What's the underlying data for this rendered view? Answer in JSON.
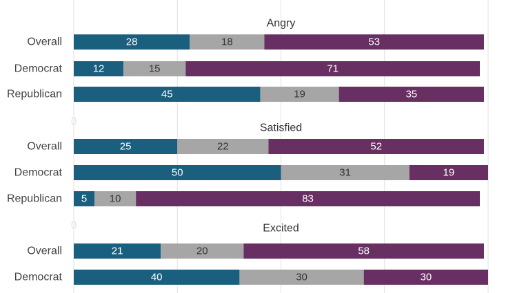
{
  "chart_data": {
    "type": "bar",
    "orientation": "horizontal",
    "stacked": true,
    "xlim": [
      0,
      100
    ],
    "grid": true,
    "colors": [
      "#1b5f7f",
      "#a6a6a6",
      "#682f63"
    ],
    "groups": [
      {
        "title": "Angry",
        "rows": [
          {
            "category": "Overall",
            "values": [
              28,
              18,
              53
            ]
          },
          {
            "category": "Democrat",
            "values": [
              12,
              15,
              71
            ]
          },
          {
            "category": "Republican",
            "values": [
              45,
              19,
              35
            ]
          }
        ]
      },
      {
        "title": "Satisfied",
        "rows": [
          {
            "category": "Overall",
            "values": [
              25,
              22,
              52
            ]
          },
          {
            "category": "Democrat",
            "values": [
              50,
              31,
              19
            ]
          },
          {
            "category": "Republican",
            "values": [
              5,
              10,
              83
            ]
          }
        ]
      },
      {
        "title": "Excited",
        "rows": [
          {
            "category": "Overall",
            "values": [
              21,
              20,
              58
            ]
          },
          {
            "category": "Democrat",
            "values": [
              40,
              30,
              30
            ]
          }
        ]
      }
    ]
  }
}
